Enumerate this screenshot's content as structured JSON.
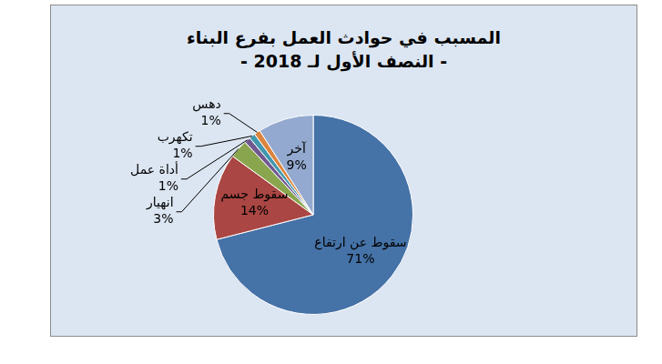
{
  "chart_data": {
    "type": "pie",
    "title": "المسبب في حوادث العمل بفرع البناء",
    "subtitle": "- النصف الأول لـ 2018 -",
    "categories": [
      "سقوط عن ارتفاع",
      "سقوط جسم",
      "انهيار",
      "أداة عمل",
      "تكهرب",
      "دهس",
      "آخر"
    ],
    "values": [
      71,
      14,
      3,
      1,
      1,
      1,
      9
    ],
    "value_labels": [
      "71%",
      "14%",
      "3%",
      "1%",
      "1%",
      "1%",
      "9%"
    ],
    "colors": [
      "#4572A7",
      "#AA4643",
      "#89A54E",
      "#71588F",
      "#4198AF",
      "#DB843D",
      "#93A9CF"
    ],
    "data_labels": true
  }
}
